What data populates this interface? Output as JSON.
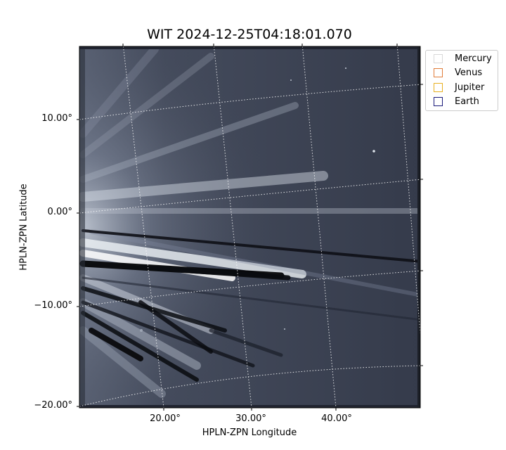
{
  "title": "WIT 2024-12-25T04:18:01.070",
  "axes": {
    "xlabel": "HPLN-ZPN Longitude",
    "ylabel": "HPLN-ZPN Latitude",
    "xticks": [
      "20.00°",
      "30.00°",
      "40.00°"
    ],
    "yticks": [
      "10.00°",
      "0.00°",
      "−10.00°",
      "−20.00°"
    ]
  },
  "legend": [
    {
      "label": "Mercury",
      "color": "#d9d9d9"
    },
    {
      "label": "Venus",
      "color": "#e07b39"
    },
    {
      "label": "Jupiter",
      "color": "#e8b020"
    },
    {
      "label": "Earth",
      "color": "#1a1a7a"
    }
  ],
  "colormap": "bone"
}
